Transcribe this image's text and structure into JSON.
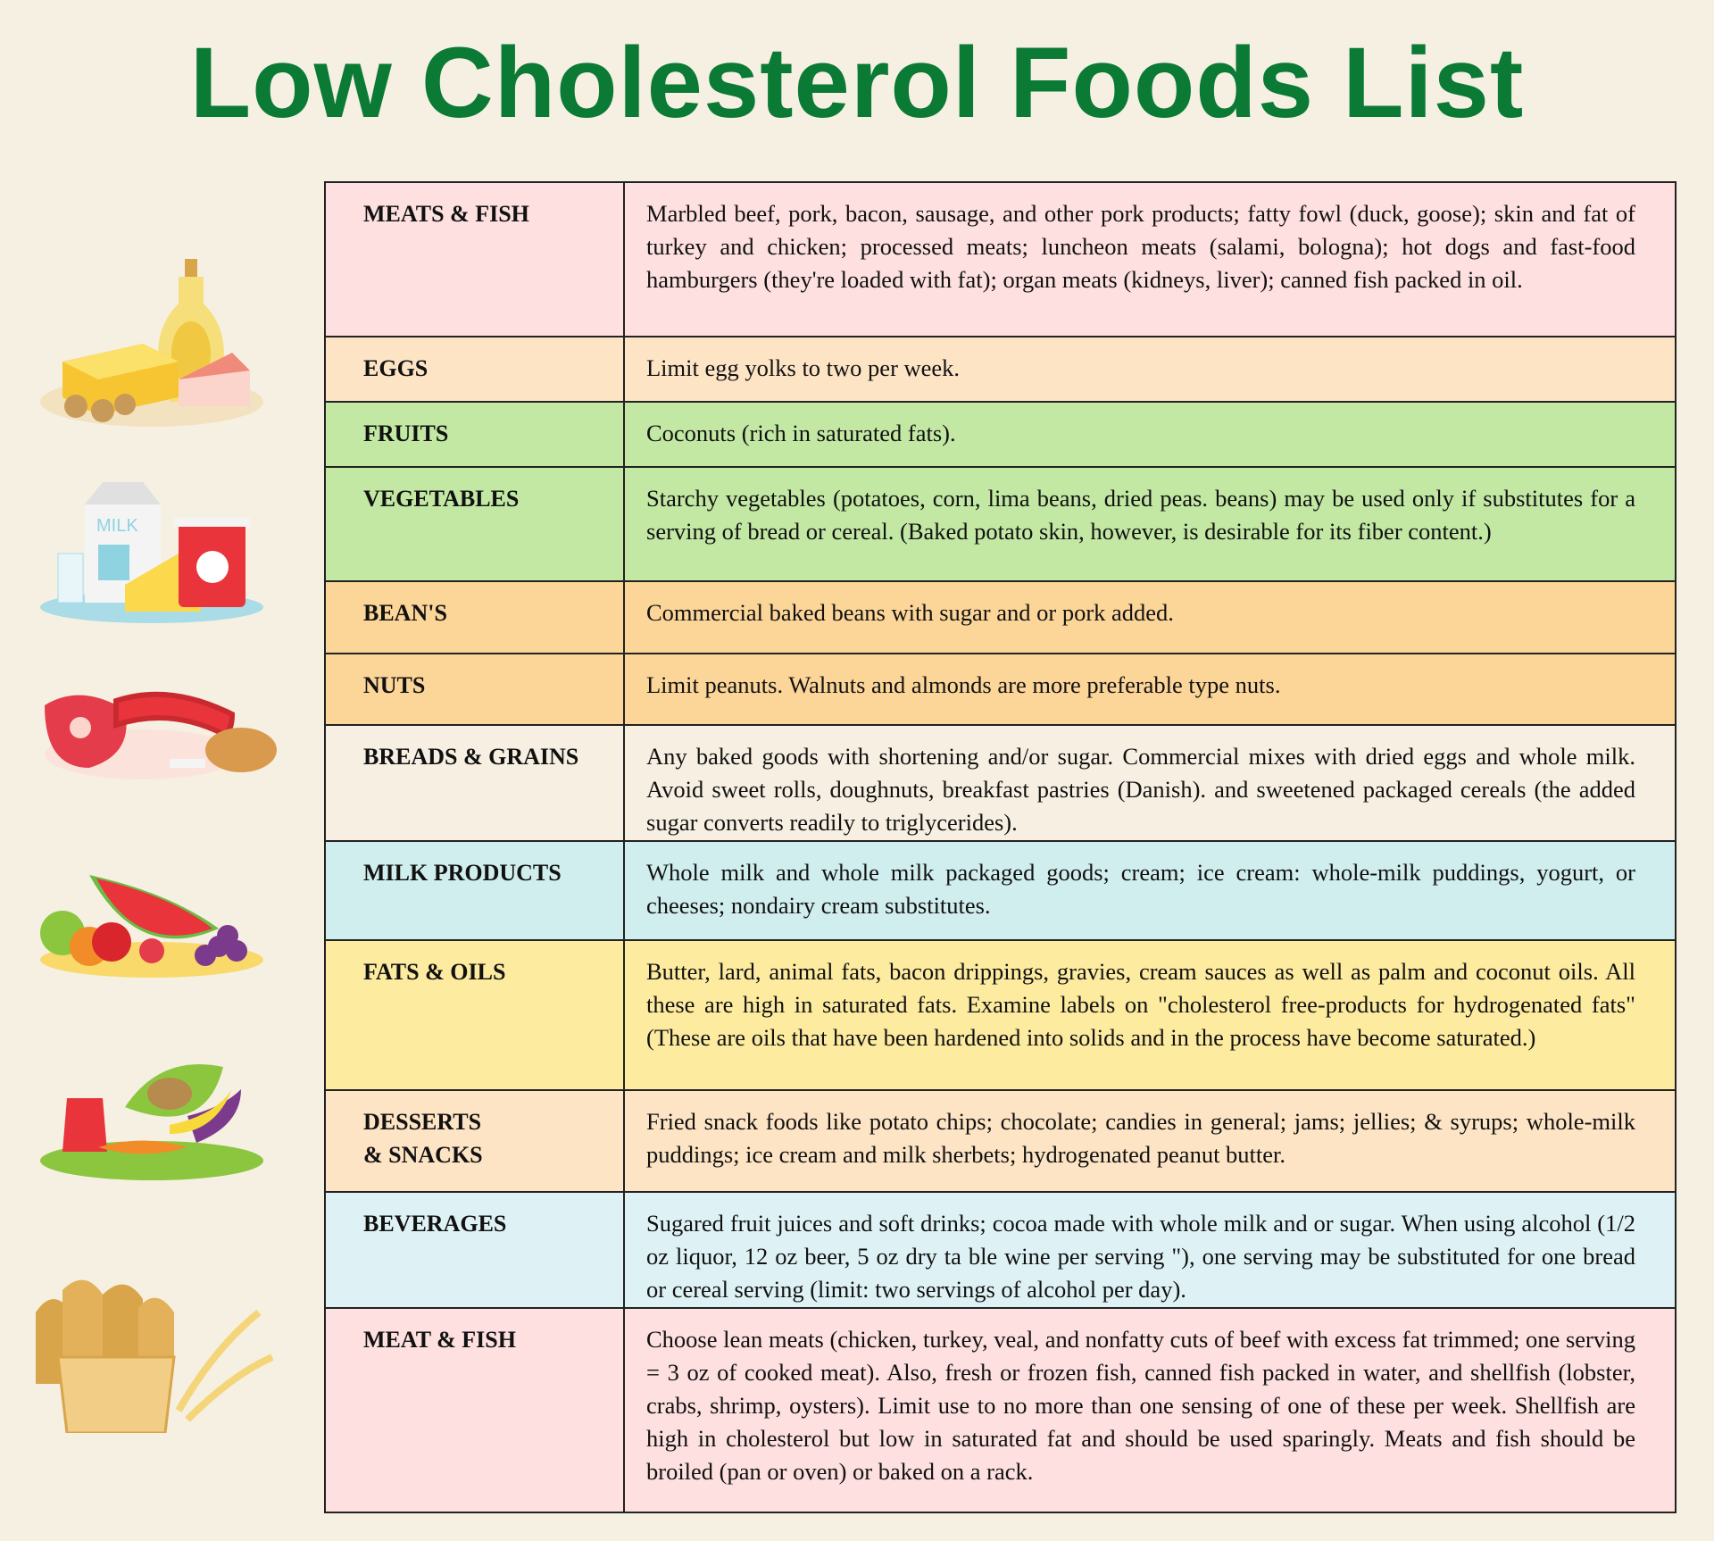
{
  "title": "Low Cholesterol Foods List",
  "rows": [
    {
      "category": "MEATS & FISH",
      "description": "Marbled beef, pork, bacon, sausage, and other pork products; fatty fowl (duck, goose); skin and fat of turkey and chicken; processed meats; luncheon meats (salami, bologna); hot dogs and fast-food hamburgers (they're loaded with fat); organ meats (kidneys, liver); canned fish packed  in oil.",
      "color": "#fde0df"
    },
    {
      "category": "EGGS",
      "description": "Limit egg yolks to two per week.",
      "color": "#fde4c4"
    },
    {
      "category": "FRUITS",
      "description": "Coconuts (rich in saturated fats).",
      "color": "#c2e8a4"
    },
    {
      "category": "VEGETABLES",
      "description": "Starchy vegetables (potatoes, corn, lima beans, dried peas. beans) may be used only if substitutes for a serving of bread or cereal. (Baked potato skin, however, is desirable for its fiber content.)",
      "color": "#c2e8a4"
    },
    {
      "category": "BEAN'S",
      "description": "Commercial baked beans with sugar and or pork added.",
      "color": "#fcd598"
    },
    {
      "category": "NUTS",
      "description": "Limit peanuts. Walnuts and almonds are more preferable type nuts.",
      "color": "#fcd598"
    },
    {
      "category": "BREADS & GRAINS",
      "description": "Any baked goods with shortening and/or sugar. Commercial mixes with dried eggs and whole milk. Avoid sweet rolls, doughnuts, breakfast pastries (Danish). and sweetened packaged cereals (the added sugar converts readily to triglycerides).",
      "color": "#f7f0e2"
    },
    {
      "category": "MILK PRODUCTS",
      "description": "Whole milk and whole milk packaged goods; cream; ice cream: whole-milk puddings, yogurt, or cheeses; nondairy cream substitutes.",
      "color": "#d1eeee"
    },
    {
      "category": "FATS & OILS",
      "description": "Butter, lard, animal fats, bacon drippings, gravies, cream sauces as well as palm and coconut oils. All these are high in saturated fats. Examine labels on \"cholesterol free-products for hydrogenated fats\" (These are oils that have been hardened into solids and in the process have become saturated.)",
      "color": "#fdeba0"
    },
    {
      "category": "DESSERTS\n& SNACKS",
      "description": "Fried snack foods like potato chips; chocolate; candies in general; jams; jellies; & syrups; whole-milk puddings; ice cream and milk sherbets; hydrogenated peanut butter.",
      "color": "#fde4c4"
    },
    {
      "category": "BEVERAGES",
      "description": "Sugared fruit juices and soft drinks; cocoa made with whole milk and or sugar. When using alcohol (1/2 oz liquor, 12 oz beer, 5 oz dry ta ble wine per serving \"), one serving may be substituted for one bread or cereal serving (limit: two servings of alcohol per day).",
      "color": "#def2f5"
    },
    {
      "category": "MEAT & FISH",
      "description": "Choose lean meats (chicken, turkey, veal, and nonfatty cuts of beef with excess fat trimmed; one serving = 3 oz of cooked meat). Also, fresh or frozen fish, canned fish packed in water, and shellfish (lobster, crabs, shrimp, oysters). Limit use to no more than one sensing of one of these per week. Shellfish are high in cholesterol but low in saturated fat and should be used sparingly. Meats and fish should be broiled (pan or oven) or baked on a rack.",
      "color": "#fde0df"
    }
  ],
  "illustrations": {
    "milk_label": "MILK"
  }
}
